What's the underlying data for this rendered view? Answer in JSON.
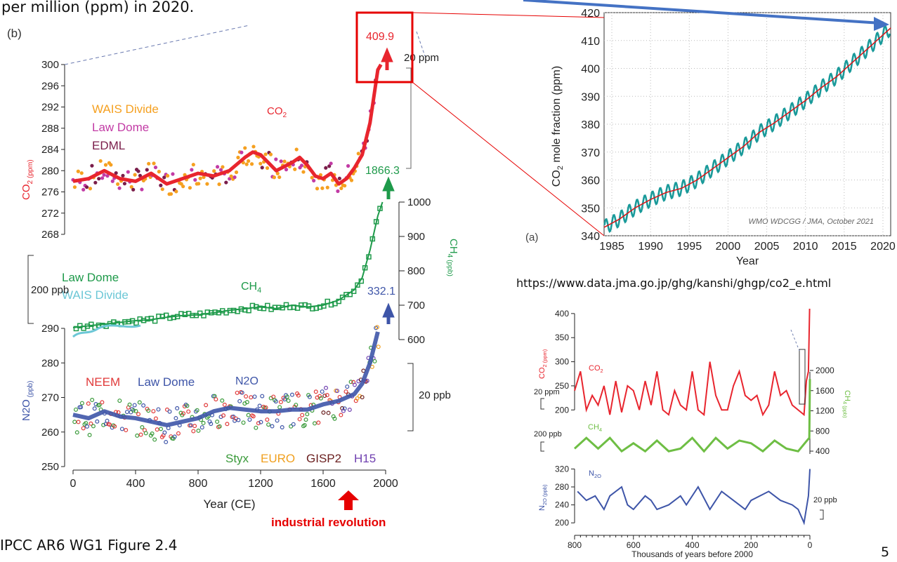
{
  "slide": {
    "intro_text": "per million (ppm) in 2020.",
    "source_ipcc": "IPCC AR6 WG1 Figure 2.4",
    "page_number": "5",
    "url": "https://www.data.jma.go.jp/ghg/kanshi/ghgp/co2_e.html",
    "annotation_industrial": "industrial revolution",
    "colors": {
      "highlight": "#e60000",
      "arrow": "#4472c4"
    }
  },
  "chart_data": [
    {
      "type": "line",
      "panel": "(b)",
      "xlabel": "Year (CE)",
      "xlim": [
        0,
        2000
      ],
      "x_ticks": [
        0,
        400,
        800,
        1200,
        1600,
        2000
      ],
      "colors": {
        "co2": "#e8252e",
        "ch4": "#1e9a4a",
        "n2o": "#3e55a8",
        "wais": "#f5a020",
        "lawdome_co2": "#c23ba5",
        "edml": "#7a1d4a",
        "wais_ch4": "#6cc7d6"
      },
      "co2": {
        "ylabel": "CO2 (ppm)",
        "ylim": [
          268,
          300
        ],
        "y_ticks": [
          268,
          272,
          276,
          280,
          284,
          288,
          292,
          296,
          300
        ],
        "legend": [
          "WAIS Divide",
          "Law Dome",
          "EDML"
        ],
        "series_label": "CO2",
        "value_2019": "409.9",
        "x": [
          0,
          100,
          200,
          300,
          400,
          500,
          600,
          700,
          800,
          900,
          1000,
          1100,
          1150,
          1200,
          1250,
          1300,
          1400,
          1450,
          1500,
          1550,
          1600,
          1650,
          1700,
          1750,
          1800,
          1850,
          1900,
          1950,
          1970
        ],
        "y": [
          278,
          278.5,
          280,
          278.5,
          278,
          279.5,
          277.5,
          278.5,
          279.5,
          279,
          280,
          282.5,
          283.5,
          283,
          281.5,
          280,
          281.5,
          282.5,
          281,
          279,
          278.5,
          279.5,
          277.5,
          278.5,
          280.5,
          283,
          289,
          299,
          300
        ]
      },
      "ch4": {
        "ylabel": "CH4 (ppb)",
        "ylim": [
          600,
          1000
        ],
        "y_ticks": [
          600,
          700,
          800,
          900,
          1000
        ],
        "legend": [
          "Law Dome",
          "WAIS Divide"
        ],
        "series_label": "CH4",
        "value_2019": "1866.3",
        "scale_bar": "200 ppb",
        "x": [
          0,
          100,
          200,
          300,
          400,
          500,
          600,
          700,
          800,
          900,
          1000,
          1100,
          1200,
          1300,
          1400,
          1500,
          1600,
          1700,
          1750,
          1800,
          1850,
          1900,
          1950,
          1980
        ],
        "y": [
          635,
          640,
          645,
          650,
          655,
          658,
          665,
          670,
          672,
          678,
          685,
          690,
          695,
          690,
          700,
          695,
          700,
          715,
          730,
          745,
          780,
          860,
          960,
          1000
        ]
      },
      "n2o": {
        "ylabel": "N2O (ppb)",
        "ylim": [
          250,
          290
        ],
        "y_ticks": [
          250,
          260,
          270,
          280,
          290
        ],
        "legend": [
          "NEEM",
          "Law Dome",
          "Styx",
          "EURO",
          "GISP2",
          "H15"
        ],
        "series_label": "N2O",
        "value_2019": "332.1",
        "scale_bar_co2": "20 ppm",
        "scale_bar": "20 ppb",
        "x": [
          0,
          100,
          200,
          300,
          400,
          500,
          600,
          700,
          800,
          900,
          1000,
          1100,
          1200,
          1300,
          1400,
          1500,
          1600,
          1700,
          1800,
          1850,
          1900,
          1950
        ],
        "y": [
          265,
          264,
          266,
          264.5,
          264,
          263,
          262,
          263,
          264,
          266,
          267,
          266.5,
          266,
          266,
          266.5,
          266.5,
          268,
          269,
          271,
          274,
          280,
          289
        ]
      }
    },
    {
      "type": "line",
      "panel": "(a)",
      "ylabel": "CO2 mole fraction (ppm)",
      "xlabel": "Year",
      "xlim": [
        1984,
        2021
      ],
      "ylim": [
        340,
        420
      ],
      "x_ticks": [
        1985,
        1990,
        1995,
        2000,
        2005,
        2010,
        2015,
        2020
      ],
      "y_ticks": [
        340,
        350,
        360,
        370,
        380,
        390,
        400,
        410,
        420
      ],
      "grid": true,
      "credit": "WMO WDCGG / JMA, October 2021",
      "colors": {
        "monthly": "#1a9a9a",
        "trend": "#d7191c"
      },
      "x": [
        1984,
        1986,
        1988,
        1990,
        1992,
        1994,
        1996,
        1998,
        2000,
        2002,
        2004,
        2006,
        2008,
        2010,
        2012,
        2014,
        2016,
        2018,
        2020,
        2021
      ],
      "y": [
        343,
        346,
        350,
        353,
        355.5,
        357,
        360,
        364,
        368,
        372,
        377,
        380.5,
        384.5,
        388.5,
        393,
        397,
        402,
        407,
        412,
        414.5
      ]
    },
    {
      "type": "line",
      "xlabel": "Thousands of years before 2000",
      "xlim": [
        800,
        0
      ],
      "x_ticks": [
        800,
        600,
        400,
        200,
        0
      ],
      "colors": {
        "co2": "#e8252e",
        "ch4": "#6ebe44",
        "n2o": "#3e55a8"
      },
      "co2": {
        "ylabel": "CO2 (ppm)",
        "ylim": [
          180,
          410
        ],
        "y_ticks": [
          200,
          250,
          300,
          350,
          400
        ],
        "series_label": "CO2",
        "scale_bar": "20 ppm",
        "x": [
          800,
          780,
          760,
          740,
          720,
          700,
          680,
          660,
          640,
          620,
          600,
          580,
          560,
          540,
          520,
          500,
          480,
          460,
          440,
          420,
          400,
          380,
          360,
          340,
          320,
          300,
          280,
          260,
          240,
          220,
          200,
          180,
          160,
          140,
          120,
          100,
          80,
          60,
          40,
          20,
          12,
          5,
          1
        ],
        "y": [
          240,
          280,
          200,
          230,
          210,
          250,
          190,
          260,
          195,
          250,
          240,
          200,
          260,
          210,
          280,
          200,
          190,
          240,
          210,
          200,
          280,
          200,
          190,
          300,
          230,
          200,
          200,
          250,
          280,
          230,
          220,
          230,
          190,
          210,
          280,
          230,
          240,
          210,
          200,
          190,
          260,
          280,
          410
        ]
      },
      "ch4": {
        "ylabel": "CH4 (ppb)",
        "ylim": [
          400,
          2000
        ],
        "y_ticks": [
          400,
          800,
          1200,
          1600,
          2000
        ],
        "series_label": "CH4",
        "scale_bar": "200 ppb",
        "x": [
          800,
          760,
          720,
          680,
          640,
          600,
          560,
          520,
          480,
          440,
          400,
          360,
          320,
          280,
          240,
          200,
          160,
          120,
          80,
          40,
          10,
          2,
          0
        ],
        "y": [
          500,
          700,
          500,
          700,
          450,
          600,
          450,
          650,
          450,
          500,
          700,
          450,
          700,
          500,
          650,
          600,
          450,
          650,
          500,
          450,
          650,
          700,
          1800
        ]
      },
      "n2o": {
        "ylabel": "N2O (ppb)",
        "ylim": [
          180,
          330
        ],
        "y_ticks": [
          200,
          240,
          280,
          320
        ],
        "series_label": "N2O",
        "scale_bar": "20 ppb",
        "x": [
          790,
          760,
          730,
          700,
          680,
          640,
          620,
          600,
          560,
          540,
          520,
          480,
          440,
          420,
          380,
          340,
          300,
          280,
          240,
          220,
          200,
          140,
          100,
          60,
          40,
          20,
          5,
          0
        ],
        "y": [
          270,
          250,
          260,
          230,
          260,
          280,
          240,
          230,
          260,
          250,
          230,
          240,
          260,
          240,
          280,
          230,
          270,
          260,
          240,
          230,
          250,
          270,
          250,
          240,
          230,
          200,
          260,
          320
        ]
      }
    }
  ]
}
